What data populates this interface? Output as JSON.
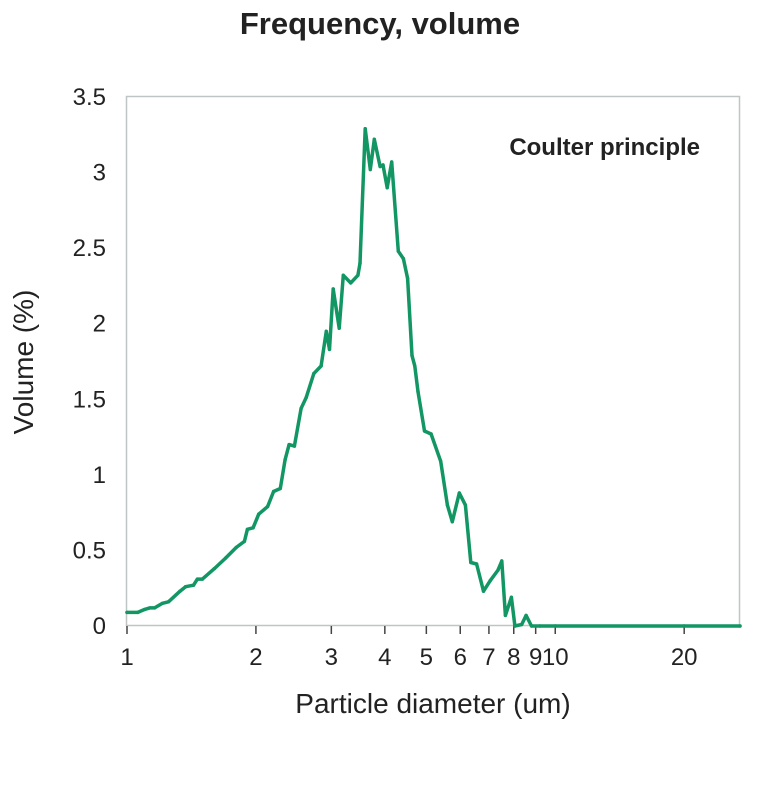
{
  "chart_data": {
    "type": "line",
    "title": "Frequency, volume",
    "xlabel": "Particle diameter (um)",
    "ylabel": "Volume (%)",
    "x_scale": "log",
    "xlim": [
      1,
      27
    ],
    "ylim": [
      0,
      3.5
    ],
    "x_ticks": [
      {
        "value": 1,
        "label": "1"
      },
      {
        "value": 2,
        "label": "2"
      },
      {
        "value": 3,
        "label": "3"
      },
      {
        "value": 4,
        "label": "4"
      },
      {
        "value": 5,
        "label": "5"
      },
      {
        "value": 6,
        "label": "6"
      },
      {
        "value": 7,
        "label": "7"
      },
      {
        "value": 8,
        "label": "8"
      },
      {
        "value": 9,
        "label": "9"
      },
      {
        "value": 10,
        "label": "10"
      },
      {
        "value": 20,
        "label": "20"
      }
    ],
    "y_ticks": [
      {
        "value": 0,
        "label": "0"
      },
      {
        "value": 0.5,
        "label": "0.5"
      },
      {
        "value": 1,
        "label": "1"
      },
      {
        "value": 1.5,
        "label": "1.5"
      },
      {
        "value": 2,
        "label": "2"
      },
      {
        "value": 2.5,
        "label": "2.5"
      },
      {
        "value": 3,
        "label": "3"
      },
      {
        "value": 3.5,
        "label": "3.5"
      }
    ],
    "grid": false,
    "annotation": "Coulter principle",
    "series": [
      {
        "color": "#129664",
        "points": [
          [
            1.0,
            0.09
          ],
          [
            1.06,
            0.09
          ],
          [
            1.1,
            0.11
          ],
          [
            1.13,
            0.12
          ],
          [
            1.16,
            0.12
          ],
          [
            1.21,
            0.15
          ],
          [
            1.25,
            0.16
          ],
          [
            1.33,
            0.23
          ],
          [
            1.37,
            0.26
          ],
          [
            1.43,
            0.27
          ],
          [
            1.46,
            0.31
          ],
          [
            1.5,
            0.31
          ],
          [
            1.6,
            0.38
          ],
          [
            1.7,
            0.45
          ],
          [
            1.8,
            0.52
          ],
          [
            1.88,
            0.56
          ],
          [
            1.91,
            0.64
          ],
          [
            1.97,
            0.65
          ],
          [
            2.03,
            0.74
          ],
          [
            2.13,
            0.79
          ],
          [
            2.2,
            0.89
          ],
          [
            2.28,
            0.91
          ],
          [
            2.34,
            1.1
          ],
          [
            2.39,
            1.2
          ],
          [
            2.46,
            1.19
          ],
          [
            2.55,
            1.44
          ],
          [
            2.62,
            1.51
          ],
          [
            2.73,
            1.67
          ],
          [
            2.84,
            1.72
          ],
          [
            2.92,
            1.95
          ],
          [
            2.97,
            1.83
          ],
          [
            3.03,
            2.23
          ],
          [
            3.13,
            1.97
          ],
          [
            3.2,
            2.32
          ],
          [
            3.33,
            2.27
          ],
          [
            3.46,
            2.32
          ],
          [
            3.5,
            2.4
          ],
          [
            3.6,
            3.29
          ],
          [
            3.7,
            3.02
          ],
          [
            3.78,
            3.22
          ],
          [
            3.9,
            3.04
          ],
          [
            3.96,
            3.05
          ],
          [
            4.05,
            2.9
          ],
          [
            4.15,
            3.07
          ],
          [
            4.3,
            2.48
          ],
          [
            4.42,
            2.43
          ],
          [
            4.52,
            2.3
          ],
          [
            4.63,
            1.79
          ],
          [
            4.7,
            1.72
          ],
          [
            4.78,
            1.55
          ],
          [
            4.95,
            1.29
          ],
          [
            5.13,
            1.27
          ],
          [
            5.4,
            1.09
          ],
          [
            5.6,
            0.8
          ],
          [
            5.75,
            0.69
          ],
          [
            5.97,
            0.88
          ],
          [
            6.17,
            0.8
          ],
          [
            6.35,
            0.42
          ],
          [
            6.55,
            0.41
          ],
          [
            6.8,
            0.23
          ],
          [
            7.05,
            0.3
          ],
          [
            7.35,
            0.37
          ],
          [
            7.5,
            0.43
          ],
          [
            7.65,
            0.07
          ],
          [
            7.9,
            0.19
          ],
          [
            8.05,
            0.0
          ],
          [
            8.35,
            0.01
          ],
          [
            8.55,
            0.07
          ],
          [
            8.8,
            0.0
          ],
          [
            9.2,
            0.0
          ],
          [
            10.0,
            0.0
          ],
          [
            20.0,
            0.0
          ],
          [
            27.0,
            0.0
          ]
        ]
      }
    ]
  }
}
